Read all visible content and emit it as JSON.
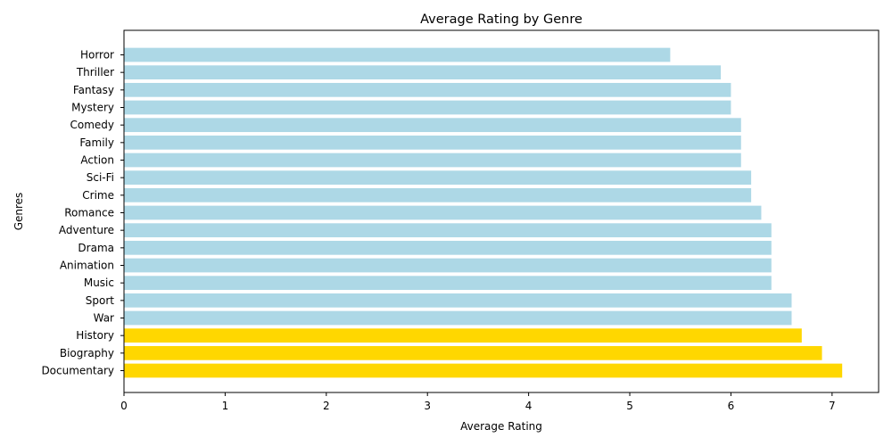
{
  "chart_data": {
    "type": "bar",
    "orientation": "horizontal",
    "title": "Average Rating by Genre",
    "xlabel": "Average Rating",
    "ylabel": "Genres",
    "xlim": [
      0,
      7.46
    ],
    "xticks": [
      0,
      1,
      2,
      3,
      4,
      5,
      6,
      7
    ],
    "grid": false,
    "categories": [
      "Documentary",
      "Biography",
      "History",
      "War",
      "Sport",
      "Music",
      "Animation",
      "Drama",
      "Adventure",
      "Romance",
      "Crime",
      "Sci-Fi",
      "Action",
      "Family",
      "Comedy",
      "Mystery",
      "Fantasy",
      "Thriller",
      "Horror"
    ],
    "values": [
      7.1,
      6.9,
      6.7,
      6.6,
      6.6,
      6.4,
      6.4,
      6.4,
      6.4,
      6.3,
      6.2,
      6.2,
      6.1,
      6.1,
      6.1,
      6.0,
      6.0,
      5.9,
      5.4
    ],
    "highlighted": [
      "Documentary",
      "Biography",
      "History"
    ],
    "colors": {
      "default": "#add8e6",
      "highlight": "#ffd700"
    }
  }
}
